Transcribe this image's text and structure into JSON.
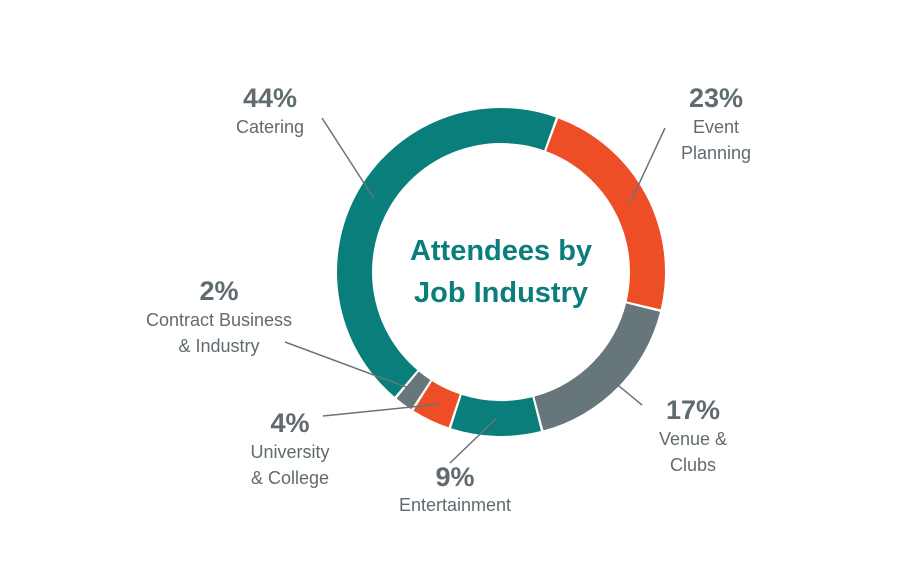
{
  "chart_data": {
    "type": "pie",
    "title_lines": [
      "Attendees by",
      "Job Industry"
    ],
    "colors": {
      "teal": "#0a7e7a",
      "orange": "#ee4e25",
      "gray": "#66767b",
      "label": "#606b70"
    },
    "slices": [
      {
        "label_lines": [
          "Catering"
        ],
        "percent_label": "44%",
        "value": 44,
        "color": "#0a7e7a"
      },
      {
        "label_lines": [
          "Event",
          "Planning"
        ],
        "percent_label": "23%",
        "value": 23,
        "color": "#ee4e25"
      },
      {
        "label_lines": [
          "Venue &",
          "Clubs"
        ],
        "percent_label": "17%",
        "value": 17,
        "color": "#66767b"
      },
      {
        "label_lines": [
          "Entertainment"
        ],
        "percent_label": "9%",
        "value": 9,
        "color": "#0a7e7a"
      },
      {
        "label_lines": [
          "University",
          "& College"
        ],
        "percent_label": "4%",
        "value": 4,
        "color": "#ee4e25"
      },
      {
        "label_lines": [
          "Contract Business",
          "& Industry"
        ],
        "percent_label": "2%",
        "value": 2,
        "color": "#66767b"
      }
    ]
  }
}
